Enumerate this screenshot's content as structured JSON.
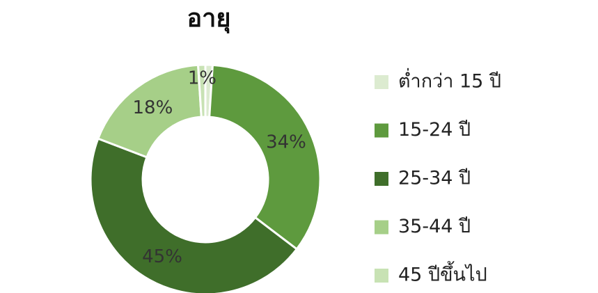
{
  "chart_data": {
    "type": "donut",
    "title": "อายุ",
    "categories": [
      "ต่ำกว่า 15 ปี",
      "15-24 ปี",
      "25-34 ปี",
      "35-44 ปี",
      "45 ปีขึ้นไป"
    ],
    "values": [
      1,
      34,
      45,
      18,
      1
    ],
    "value_labels": [
      null,
      "34%",
      "45%",
      "18%",
      "1%"
    ],
    "colors": [
      "#dcebd0",
      "#5e9a3e",
      "#3f6e2a",
      "#a6cf88",
      "#c8e2b4"
    ],
    "legend": "right"
  }
}
